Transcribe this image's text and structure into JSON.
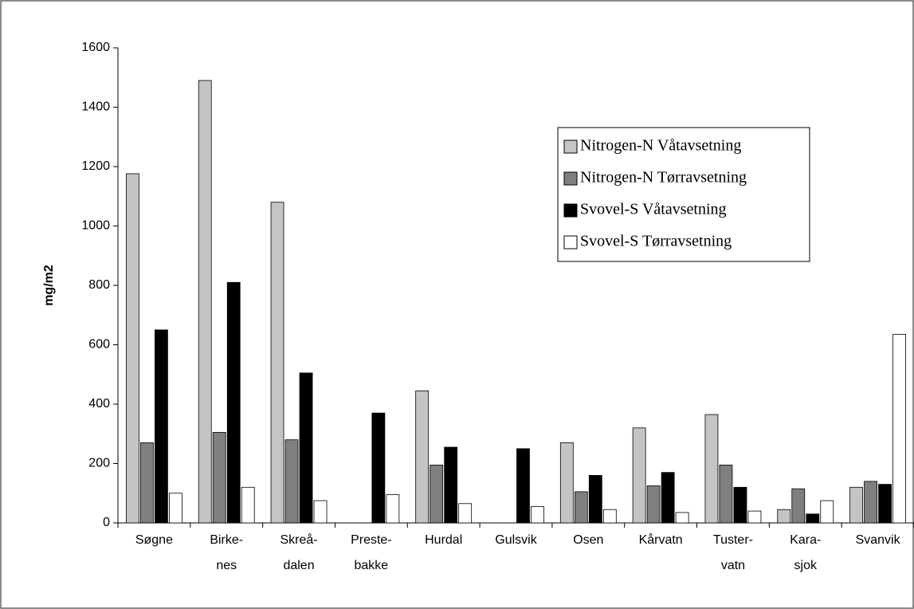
{
  "chart_data": {
    "type": "bar",
    "y_label": "mg/m2",
    "categories": [
      [
        "Søgne"
      ],
      [
        "Birke-",
        "nes"
      ],
      [
        "Skreå-",
        "dalen"
      ],
      [
        "Preste-",
        "bakke"
      ],
      [
        "Hurdal"
      ],
      [
        "Gulsvik"
      ],
      [
        "Osen"
      ],
      [
        "Kårvatn"
      ],
      [
        "Tuster-",
        "vatn"
      ],
      [
        "Kara-",
        "sjok"
      ],
      [
        "Svanvik"
      ]
    ],
    "series": [
      {
        "name": "Nitrogen-N Våtavsetning",
        "color": "#c4c4c4",
        "values": [
          1176,
          1490,
          1080,
          null,
          445,
          null,
          270,
          320,
          365,
          45,
          120
        ]
      },
      {
        "name": "Nitrogen-N Tørravsetning",
        "color": "#7f7f7f",
        "values": [
          270,
          305,
          280,
          null,
          195,
          null,
          105,
          125,
          195,
          115,
          140
        ]
      },
      {
        "name": "Svovel-S Våtavsetning",
        "color": "#000000",
        "values": [
          650,
          810,
          505,
          370,
          255,
          250,
          160,
          170,
          120,
          30,
          130
        ]
      },
      {
        "name": "Svovel-S Tørravsetning",
        "color": "#ffffff",
        "values": [
          100,
          120,
          75,
          95,
          65,
          55,
          45,
          35,
          40,
          75,
          635
        ]
      }
    ],
    "ylim": [
      0,
      1600
    ],
    "yticks": [
      0,
      200,
      400,
      600,
      800,
      1000,
      1200,
      1400,
      1600
    ],
    "legend": "upper right",
    "grid": false
  }
}
